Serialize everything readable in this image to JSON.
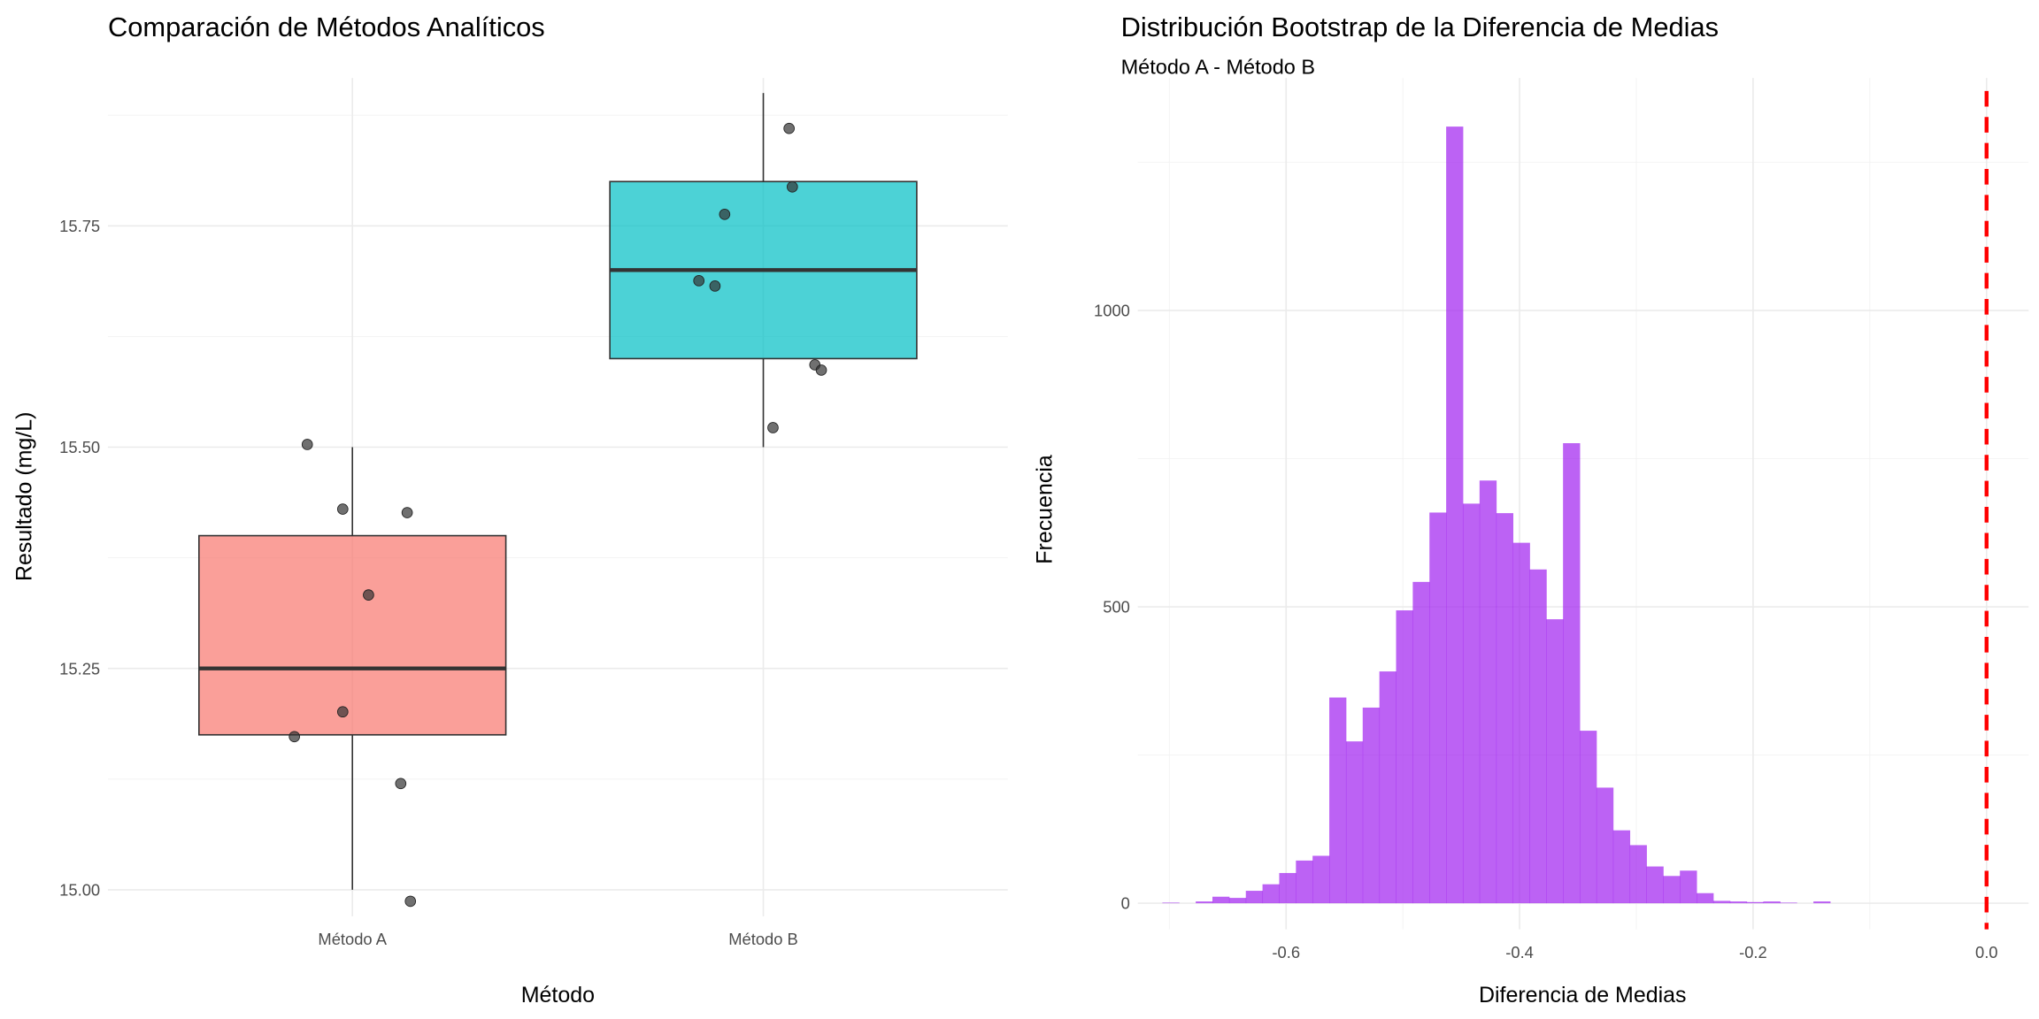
{
  "chart_data": [
    {
      "type": "boxplot",
      "title": "Comparación de Métodos Analíticos",
      "xlabel": "Método",
      "ylabel": "Resultado (mg/L)",
      "ylim": [
        14.97,
        15.917
      ],
      "yticks": [
        15.0,
        15.25,
        15.5,
        15.75
      ],
      "ytick_labels": [
        "15.00",
        "15.25",
        "15.50",
        "15.75"
      ],
      "grid": true,
      "categories": [
        "Método A",
        "Método B"
      ],
      "boxes": [
        {
          "name": "Método A",
          "whisker_low": 15.0,
          "q1": 15.175,
          "median": 15.25,
          "q3": 15.4,
          "whisker_high": 15.5,
          "color": "#F8766D",
          "points": [
            [
              -0.14,
              15.503
            ],
            [
              -0.03,
              15.43
            ],
            [
              0.17,
              15.426
            ],
            [
              0.05,
              15.333
            ],
            [
              -0.03,
              15.201
            ],
            [
              -0.18,
              15.173
            ],
            [
              0.15,
              15.12
            ],
            [
              0.18,
              14.987
            ]
          ]
        },
        {
          "name": "Método B",
          "whisker_low": 15.5,
          "q1": 15.6,
          "median": 15.7,
          "q3": 15.8,
          "whisker_high": 15.9,
          "color": "#00BFC4",
          "points": [
            [
              0.08,
              15.86
            ],
            [
              0.09,
              15.794
            ],
            [
              -0.12,
              15.763
            ],
            [
              -0.2,
              15.688
            ],
            [
              -0.15,
              15.682
            ],
            [
              0.16,
              15.593
            ],
            [
              0.18,
              15.587
            ],
            [
              0.03,
              15.522
            ]
          ]
        }
      ]
    },
    {
      "type": "histogram",
      "title": "Distribución Bootstrap de la Diferencia de Medias",
      "subtitle": "Método A - Método B",
      "xlabel": "Diferencia de Medias",
      "ylabel": "Frecuencia",
      "xlim": [
        -0.727,
        0.036
      ],
      "ylim": [
        -44,
        1392
      ],
      "xticks": [
        -0.6,
        -0.4,
        -0.2,
        0.0
      ],
      "xtick_labels": [
        "-0.6",
        "-0.4",
        "-0.2",
        "0.0"
      ],
      "yticks": [
        0,
        500,
        1000
      ],
      "ytick_labels": [
        "0",
        "500",
        "1000"
      ],
      "grid": true,
      "bin_start": -0.706,
      "bin_width": 0.0143,
      "counts": [
        1,
        0,
        3,
        11,
        9,
        21,
        32,
        51,
        72,
        80,
        347,
        273,
        330,
        391,
        494,
        542,
        659,
        1310,
        674,
        713,
        658,
        608,
        563,
        479,
        776,
        291,
        195,
        123,
        98,
        62,
        46,
        55,
        17,
        4,
        3,
        2,
        3,
        1,
        0,
        3
      ],
      "color": "#A020F0",
      "reference_line": {
        "x": 0.0,
        "color": "#FF0000",
        "style": "dashed"
      }
    }
  ]
}
